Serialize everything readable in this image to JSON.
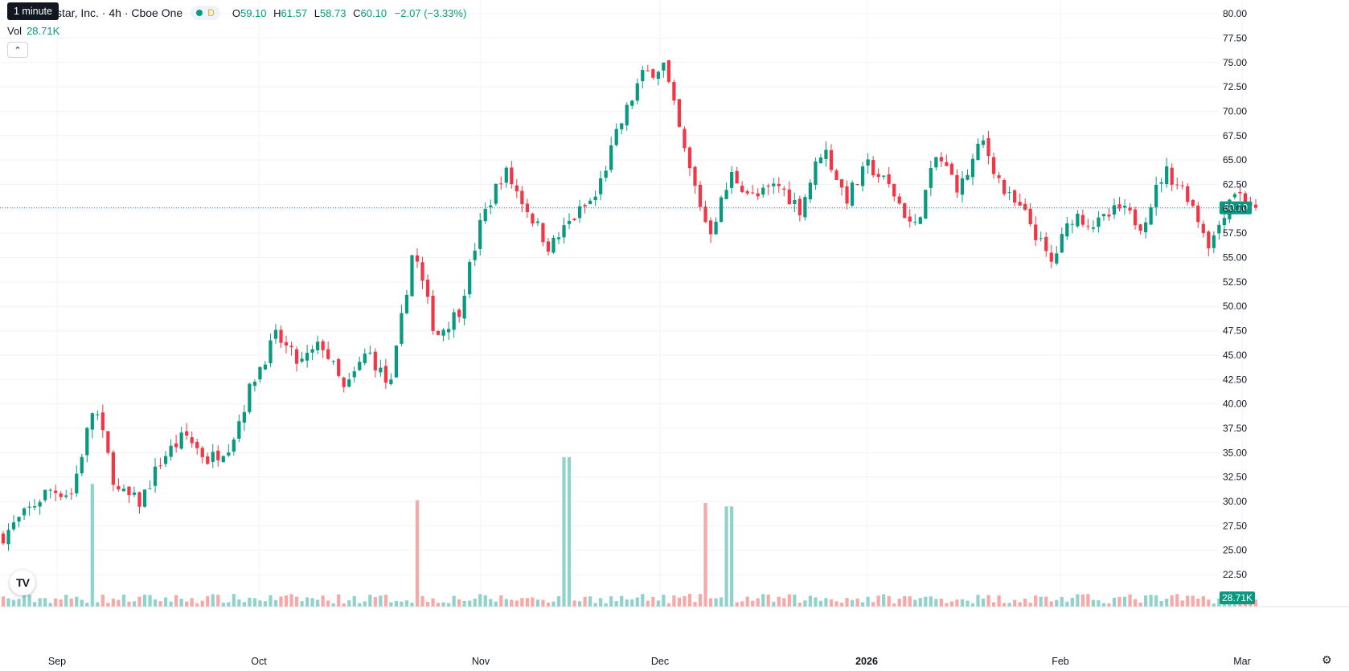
{
  "legend": {
    "title": "star, Inc. · 4h · Cboe One",
    "interval_letter": "D",
    "o_label": "O",
    "o": "59.10",
    "h_label": "H",
    "h": "61.57",
    "l_label": "L",
    "l": "58.73",
    "c_label": "C",
    "c": "60.10",
    "change": "−2.07 (−3.33%)"
  },
  "tooltip": "1 minute",
  "volume_legend": {
    "label": "Vol",
    "value": "28.71K"
  },
  "collapse_icon": "chevron-up-icon",
  "logo_text": "TV",
  "settings_icon": "gear-icon",
  "colors": {
    "up": "#089981",
    "down": "#f23645",
    "up_vol": "#92d2cc",
    "down_vol": "#f7a9a7",
    "grid": "#f0f3fa"
  },
  "chart_data": {
    "type": "candlestick",
    "y_range": [
      20.2,
      80.5
    ],
    "y_ticks": [
      "80.00",
      "77.50",
      "75.00",
      "72.50",
      "70.00",
      "67.50",
      "65.00",
      "62.50",
      "60.00",
      "57.50",
      "55.00",
      "52.50",
      "50.00",
      "47.50",
      "45.00",
      "42.50",
      "40.00",
      "37.50",
      "35.00",
      "32.50",
      "30.00",
      "27.50",
      "25.00",
      "22.50"
    ],
    "x_labels": [
      "Sep",
      "Oct",
      "Nov",
      "Dec",
      "2026",
      "Feb",
      "Mar"
    ],
    "last_price": "60.10",
    "last_volume": "28.71K",
    "price_path": [
      26.5,
      28.8,
      31.2,
      30.8,
      40.0,
      31.0,
      29.9,
      34.5,
      36.8,
      34.2,
      36.0,
      42.6,
      47.0,
      44.0,
      46.2,
      41.2,
      45.5,
      41.5,
      56.0,
      47.0,
      49.5,
      58.8,
      64.0,
      60.0,
      56.0,
      59.0,
      61.2,
      68.0,
      73.5,
      74.8,
      65.0,
      57.5,
      63.5,
      61.0,
      62.5,
      60.0,
      66.5,
      61.0,
      64.5,
      62.0,
      57.8,
      65.5,
      62.0,
      67.0,
      61.5,
      59.0,
      54.3,
      59.5,
      58.3,
      60.0,
      58.4,
      64.0,
      61.5,
      56.2,
      62.0,
      60.1
    ],
    "candle_count": 240,
    "volume_peaks": [
      [
        0.45,
        35.8
      ],
      [
        0.07,
        29.4
      ],
      [
        0.33,
        25.5
      ],
      [
        0.56,
        24.8
      ],
      [
        0.58,
        24.0
      ]
    ]
  }
}
